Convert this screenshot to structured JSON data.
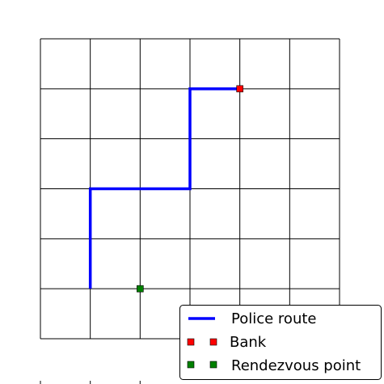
{
  "grid": {
    "columns": 6,
    "rows": 6,
    "line_color": "#000000"
  },
  "route": {
    "name": "Police route",
    "color": "#0000ff",
    "points": [
      [
        1,
        1
      ],
      [
        1,
        3
      ],
      [
        3,
        3
      ],
      [
        3,
        5
      ],
      [
        4,
        5
      ]
    ]
  },
  "markers": [
    {
      "id": "bank",
      "name": "Bank",
      "x": 4,
      "y": 5,
      "color": "#ff0000"
    },
    {
      "id": "rendezvous",
      "name": "Rendezvous point",
      "x": 2,
      "y": 1,
      "color": "#008000"
    }
  ],
  "legend": {
    "position": "bottom-right",
    "items": [
      {
        "label": "Police route",
        "kind": "line",
        "color": "#0000ff"
      },
      {
        "label": "Bank",
        "kind": "marker",
        "color": "#ff0000"
      },
      {
        "label": "Rendezvous point",
        "kind": "marker",
        "color": "#008000"
      }
    ]
  }
}
